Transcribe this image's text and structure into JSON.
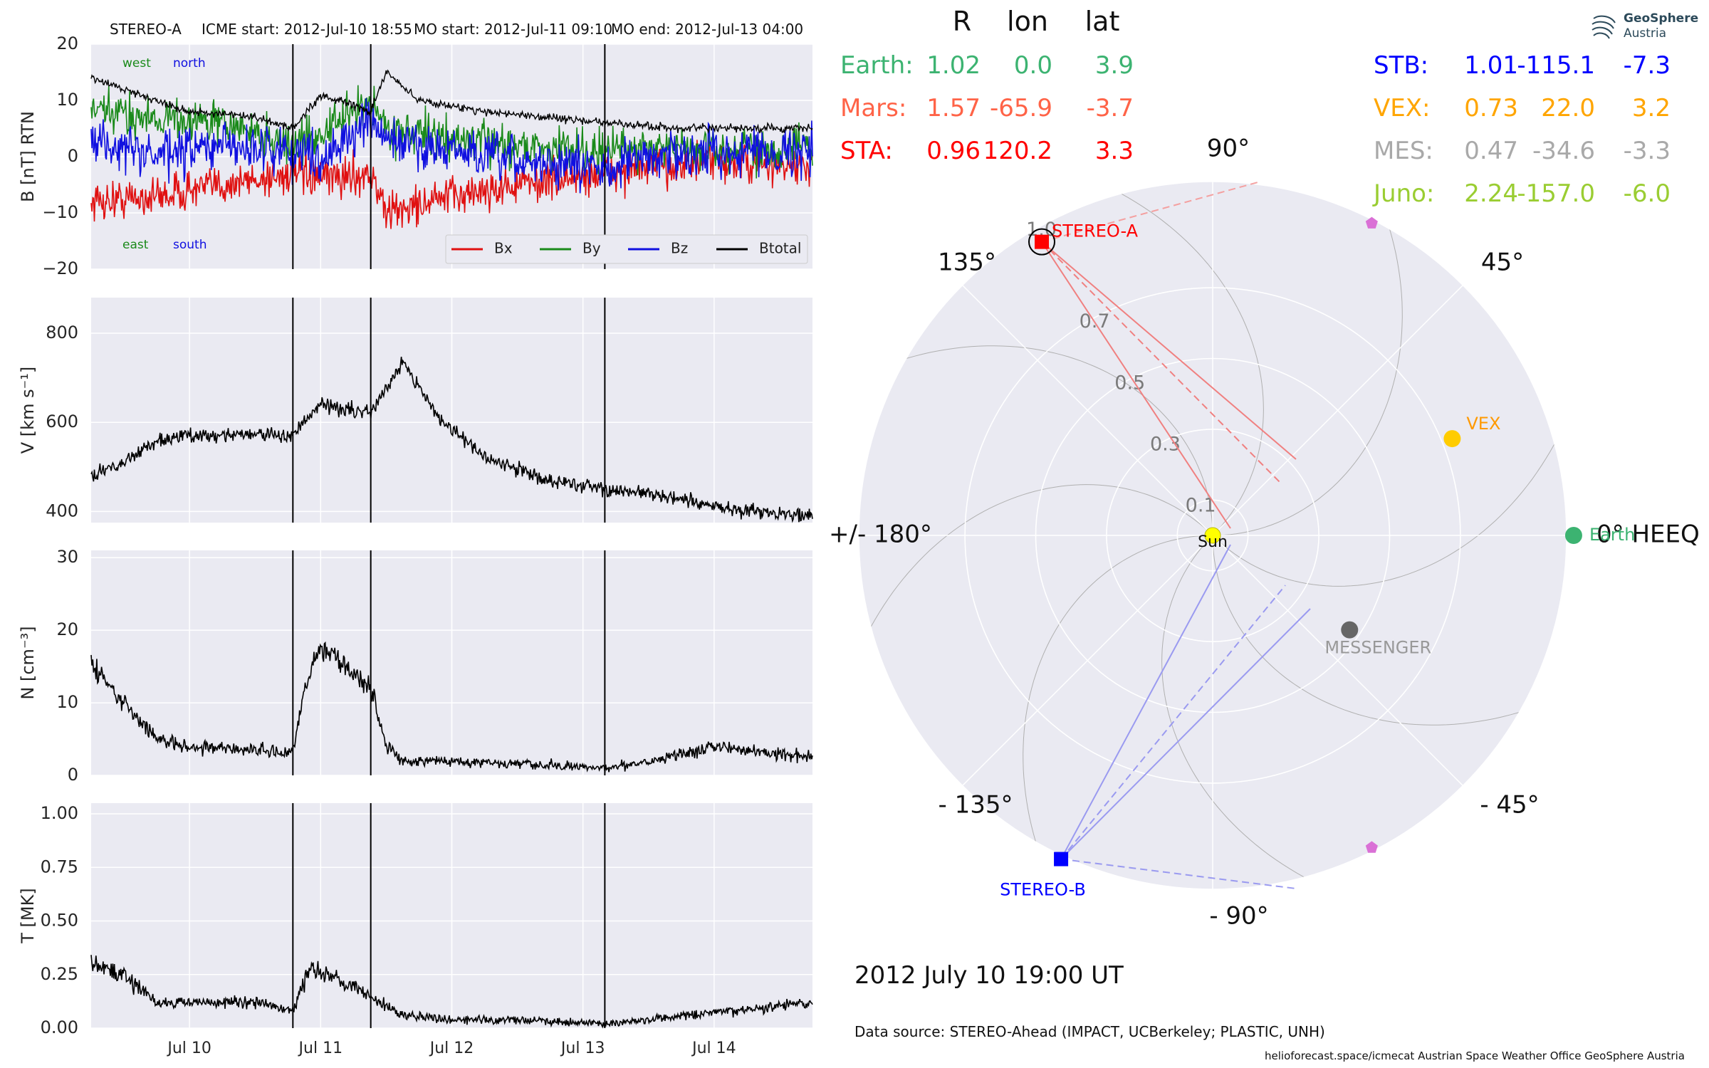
{
  "header": {
    "spacecraft": "STEREO-A",
    "icme_start": "ICME start: 2012-Jul-10 18:55",
    "mo_start": "MO start: 2012-Jul-11 09:10",
    "mo_end": "MO end: 2012-Jul-13 04:00"
  },
  "chart_data": [
    {
      "type": "line",
      "panel": "magnetic-field",
      "ylabel": "B [nT] RTN",
      "ylim": [
        -20,
        20
      ],
      "yticks": [
        "−20",
        "−10",
        "0",
        "10",
        "20"
      ],
      "x_start": "2012-07-09 06:00",
      "x_end": "2012-07-14 18:00",
      "xticks": [
        "Jul 10",
        "Jul 11",
        "Jul 12",
        "Jul 13",
        "Jul 14"
      ],
      "grid": true,
      "legend_position": "lower-right",
      "annotations": [
        {
          "text": "west",
          "color": "#1a8a1a"
        },
        {
          "text": "north",
          "color": "#1010e0"
        },
        {
          "text": "east",
          "color": "#1a8a1a"
        },
        {
          "text": "south",
          "color": "#1010e0"
        }
      ],
      "series": [
        {
          "name": "Bx",
          "color": "#e01010",
          "x": [
            "2012-07-09 06:00",
            "2012-07-09 18:00",
            "2012-07-10 06:00",
            "2012-07-10 18:55",
            "2012-07-11 00:00",
            "2012-07-11 09:10",
            "2012-07-11 12:00",
            "2012-07-12 00:00",
            "2012-07-12 12:00",
            "2012-07-13 04:00",
            "2012-07-13 12:00",
            "2012-07-14 00:00",
            "2012-07-14 18:00"
          ],
          "values": [
            -8,
            -7,
            -5,
            -3,
            -4,
            -3,
            -10,
            -7,
            -5,
            -3,
            -2,
            -1,
            -2
          ]
        },
        {
          "name": "By",
          "color": "#1a8a1a",
          "x": [
            "2012-07-09 06:00",
            "2012-07-09 18:00",
            "2012-07-10 06:00",
            "2012-07-10 18:55",
            "2012-07-11 00:00",
            "2012-07-11 09:10",
            "2012-07-11 12:00",
            "2012-07-12 00:00",
            "2012-07-12 12:00",
            "2012-07-13 04:00",
            "2012-07-13 12:00",
            "2012-07-14 00:00",
            "2012-07-14 18:00"
          ],
          "values": [
            8,
            7,
            6,
            2,
            4,
            10,
            5,
            3,
            2,
            1,
            2,
            1,
            2
          ]
        },
        {
          "name": "Bz",
          "color": "#1010e0",
          "x": [
            "2012-07-09 06:00",
            "2012-07-09 18:00",
            "2012-07-10 06:00",
            "2012-07-10 18:55",
            "2012-07-11 00:00",
            "2012-07-11 09:10",
            "2012-07-11 12:00",
            "2012-07-12 00:00",
            "2012-07-12 12:00",
            "2012-07-13 04:00",
            "2012-07-13 12:00",
            "2012-07-14 00:00",
            "2012-07-14 18:00"
          ],
          "values": [
            3,
            0,
            2,
            1,
            0,
            6,
            3,
            1,
            -1,
            -2,
            0,
            1,
            1
          ]
        },
        {
          "name": "Btotal",
          "color": "#000000",
          "x": [
            "2012-07-09 06:00",
            "2012-07-09 12:00",
            "2012-07-10 00:00",
            "2012-07-10 12:00",
            "2012-07-10 18:55",
            "2012-07-11 00:00",
            "2012-07-11 09:10",
            "2012-07-11 12:00",
            "2012-07-11 18:00",
            "2012-07-12 06:00",
            "2012-07-12 18:00",
            "2012-07-13 04:00",
            "2012-07-13 18:00",
            "2012-07-14 18:00"
          ],
          "values": [
            14,
            12,
            8,
            7,
            5,
            11,
            8,
            15,
            10,
            8,
            7,
            6,
            5,
            5
          ]
        }
      ]
    },
    {
      "type": "line",
      "panel": "speed",
      "ylabel": "V [km s⁻¹]",
      "ylim": [
        375,
        880
      ],
      "yticks": [
        "400",
        "600",
        "800"
      ],
      "xticks": [
        "Jul 10",
        "Jul 11",
        "Jul 12",
        "Jul 13",
        "Jul 14"
      ],
      "grid": true,
      "series": [
        {
          "name": "",
          "color": "#000000",
          "x": [
            "2012-07-09 06:00",
            "2012-07-09 12:00",
            "2012-07-09 18:00",
            "2012-07-10 00:00",
            "2012-07-10 12:00",
            "2012-07-10 18:55",
            "2012-07-11 00:00",
            "2012-07-11 09:10",
            "2012-07-11 15:00",
            "2012-07-11 21:00",
            "2012-07-12 06:00",
            "2012-07-12 18:00",
            "2012-07-13 04:00",
            "2012-07-13 12:00",
            "2012-07-14 00:00",
            "2012-07-14 18:00"
          ],
          "values": [
            480,
            510,
            560,
            570,
            575,
            570,
            640,
            620,
            740,
            620,
            520,
            470,
            450,
            440,
            410,
            390
          ]
        }
      ]
    },
    {
      "type": "line",
      "panel": "density",
      "ylabel": "N [cm⁻³]",
      "ylim": [
        0,
        31
      ],
      "yticks": [
        "0",
        "10",
        "20",
        "30"
      ],
      "xticks": [
        "Jul 10",
        "Jul 11",
        "Jul 12",
        "Jul 13",
        "Jul 14"
      ],
      "grid": true,
      "series": [
        {
          "name": "",
          "color": "#000000",
          "x": [
            "2012-07-09 06:00",
            "2012-07-09 12:00",
            "2012-07-09 18:00",
            "2012-07-10 00:00",
            "2012-07-10 12:00",
            "2012-07-10 18:55",
            "2012-07-10 21:00",
            "2012-07-11 00:00",
            "2012-07-11 06:00",
            "2012-07-11 09:10",
            "2012-07-11 12:00",
            "2012-07-11 15:00",
            "2012-07-12 00:00",
            "2012-07-12 12:00",
            "2012-07-13 04:00",
            "2012-07-13 12:00",
            "2012-07-14 00:00",
            "2012-07-14 18:00"
          ],
          "values": [
            15,
            10,
            5,
            4,
            3.5,
            3,
            12,
            18,
            14,
            12,
            4,
            2,
            2,
            1.5,
            1,
            2,
            4,
            2.5
          ]
        }
      ]
    },
    {
      "type": "line",
      "panel": "temperature",
      "ylabel": "T [MK]",
      "ylim": [
        0,
        1.05
      ],
      "yticks": [
        "0.00",
        "0.25",
        "0.50",
        "0.75",
        "1.00"
      ],
      "xticks": [
        "Jul 10",
        "Jul 11",
        "Jul 12",
        "Jul 13",
        "Jul 14"
      ],
      "grid": true,
      "series": [
        {
          "name": "",
          "color": "#000000",
          "x": [
            "2012-07-09 06:00",
            "2012-07-09 12:00",
            "2012-07-09 18:00",
            "2012-07-10 00:00",
            "2012-07-10 12:00",
            "2012-07-10 18:55",
            "2012-07-10 22:00",
            "2012-07-11 00:00",
            "2012-07-11 06:00",
            "2012-07-11 09:10",
            "2012-07-11 15:00",
            "2012-07-12 00:00",
            "2012-07-12 12:00",
            "2012-07-13 04:00",
            "2012-07-13 12:00",
            "2012-07-14 00:00",
            "2012-07-14 18:00"
          ],
          "values": [
            0.3,
            0.25,
            0.12,
            0.12,
            0.12,
            0.08,
            0.28,
            0.25,
            0.2,
            0.15,
            0.06,
            0.04,
            0.04,
            0.02,
            0.04,
            0.07,
            0.12
          ]
        }
      ]
    },
    {
      "type": "scatter",
      "panel": "heliospheric-positions",
      "coordinate_system": "0° HEEQ",
      "r_ticks": [
        "0.1",
        "0.3",
        "0.5",
        "0.7",
        "1.0"
      ],
      "angle_labels": [
        "90°",
        "45°",
        "0° HEEQ",
        "- 45°",
        "- 90°",
        "- 135°",
        "+/- 180°",
        "135°"
      ],
      "grid": true,
      "points": [
        {
          "name": "STEREO-A",
          "r": 0.96,
          "lon": 120.2,
          "color": "#ff0000",
          "marker": "square"
        },
        {
          "name": "STEREO-B",
          "r": 1.01,
          "lon": -115.1,
          "color": "#0000ff",
          "marker": "square"
        },
        {
          "name": "Earth",
          "r": 1.02,
          "lon": 0.0,
          "color": "#3cb371",
          "marker": "circle"
        },
        {
          "name": "VEX",
          "r": 0.73,
          "lon": 22.0,
          "color": "#ffcc00",
          "marker": "circle",
          "label_color": "#ff9900"
        },
        {
          "name": "MESSENGER",
          "r": 0.47,
          "lon": -34.6,
          "color": "#666666",
          "marker": "circle",
          "label_color": "#999999"
        },
        {
          "name": "Sun",
          "r": 0,
          "lon": 0,
          "color": "#ffff00",
          "marker": "circle"
        },
        {
          "name": "",
          "r": 0.99,
          "lon": 63,
          "color": "#da70d6",
          "marker": "pentagon"
        },
        {
          "name": "",
          "r": 0.99,
          "lon": -63,
          "color": "#da70d6",
          "marker": "pentagon"
        }
      ]
    }
  ],
  "positions_table": {
    "headers": [
      "R",
      "lon",
      "lat"
    ],
    "rows_left": [
      {
        "name": "Earth:",
        "R": "1.02",
        "lon": "0.0",
        "lat": "3.9",
        "color": "#3cb371"
      },
      {
        "name": "Mars:",
        "R": "1.57",
        "lon": "-65.9",
        "lat": "-3.7",
        "color": "#ff6347"
      },
      {
        "name": "STA:",
        "R": "0.96",
        "lon": "120.2",
        "lat": "3.3",
        "color": "#ff0000"
      }
    ],
    "rows_right": [
      {
        "name": "STB:",
        "R": "1.01",
        "lon": "-115.1",
        "lat": "-7.3",
        "color": "#0000ff"
      },
      {
        "name": "VEX:",
        "R": "0.73",
        "lon": "22.0",
        "lat": "3.2",
        "color": "#ffa500"
      },
      {
        "name": "MES:",
        "R": "0.47",
        "lon": "-34.6",
        "lat": "-3.3",
        "color": "#a9a9a9"
      },
      {
        "name": "Juno:",
        "R": "2.24",
        "lon": "-157.0",
        "lat": "-6.0",
        "color": "#9acd32"
      }
    ]
  },
  "date_label": "2012 July 10  19:00 UT",
  "data_source": "Data source: STEREO-Ahead (IMPACT, UCBerkeley; PLASTIC, UNH)",
  "footer": "helioforecast.space/icmecat   Austrian Space Weather Office   GeoSphere Austria",
  "logo": {
    "line1": "GeoSphere",
    "line2": "Austria"
  }
}
